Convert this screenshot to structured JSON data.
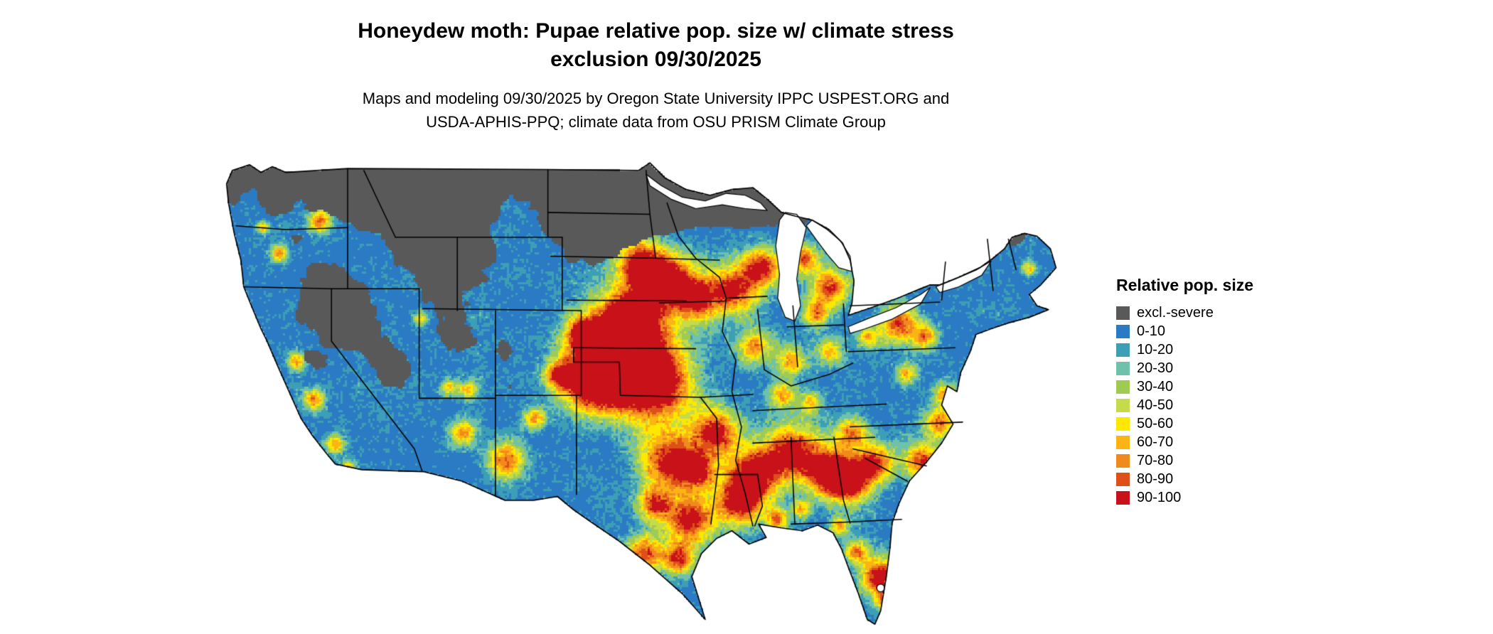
{
  "header": {
    "title": "Honeydew moth: Pupae relative pop. size w/ climate stress\nexclusion 09/30/2025",
    "subtitle": "Maps and modeling 09/30/2025 by Oregon State University IPPC USPEST.ORG and\nUSDA-APHIS-PPQ; climate data from OSU PRISM Climate Group"
  },
  "legend": {
    "title": "Relative pop. size",
    "entries": [
      {
        "label": "excl.-severe",
        "color": "#595959"
      },
      {
        "label": "0-10",
        "color": "#2B7BC4"
      },
      {
        "label": "10-20",
        "color": "#3D9FB5"
      },
      {
        "label": "20-30",
        "color": "#6FC1AC"
      },
      {
        "label": "30-40",
        "color": "#9FCB52"
      },
      {
        "label": "40-50",
        "color": "#C6DB4A"
      },
      {
        "label": "50-60",
        "color": "#FFE800"
      },
      {
        "label": "60-70",
        "color": "#FCB316"
      },
      {
        "label": "70-80",
        "color": "#F08A1D"
      },
      {
        "label": "80-90",
        "color": "#DE5018"
      },
      {
        "label": "90-100",
        "color": "#C9111A"
      }
    ]
  }
}
